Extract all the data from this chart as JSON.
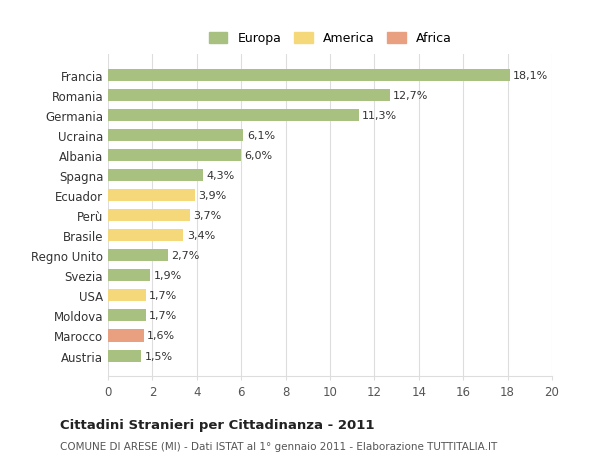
{
  "categories": [
    "Francia",
    "Romania",
    "Germania",
    "Ucraina",
    "Albania",
    "Spagna",
    "Ecuador",
    "Perù",
    "Brasile",
    "Regno Unito",
    "Svezia",
    "USA",
    "Moldova",
    "Marocco",
    "Austria"
  ],
  "values": [
    18.1,
    12.7,
    11.3,
    6.1,
    6.0,
    4.3,
    3.9,
    3.7,
    3.4,
    2.7,
    1.9,
    1.7,
    1.7,
    1.6,
    1.5
  ],
  "labels": [
    "18,1%",
    "12,7%",
    "11,3%",
    "6,1%",
    "6,0%",
    "4,3%",
    "3,9%",
    "3,7%",
    "3,4%",
    "2,7%",
    "1,9%",
    "1,7%",
    "1,7%",
    "1,6%",
    "1,5%"
  ],
  "colors": [
    "#a8c080",
    "#a8c080",
    "#a8c080",
    "#a8c080",
    "#a8c080",
    "#a8c080",
    "#f5d87a",
    "#f5d87a",
    "#f5d87a",
    "#a8c080",
    "#a8c080",
    "#f5d87a",
    "#a8c080",
    "#e8a080",
    "#a8c080"
  ],
  "continent": [
    "Europa",
    "Europa",
    "Europa",
    "Europa",
    "Europa",
    "Europa",
    "America",
    "America",
    "America",
    "Europa",
    "Europa",
    "America",
    "Europa",
    "Africa",
    "Europa"
  ],
  "legend_colors": {
    "Europa": "#a8c080",
    "America": "#f5d87a",
    "Africa": "#e8a080"
  },
  "title": "Cittadini Stranieri per Cittadinanza - 2011",
  "subtitle": "COMUNE DI ARESE (MI) - Dati ISTAT al 1° gennaio 2011 - Elaborazione TUTTITALIA.IT",
  "xlim": [
    0,
    20
  ],
  "xticks": [
    0,
    2,
    4,
    6,
    8,
    10,
    12,
    14,
    16,
    18,
    20
  ],
  "background_color": "#ffffff",
  "grid_color": "#dddddd",
  "bar_height": 0.6
}
